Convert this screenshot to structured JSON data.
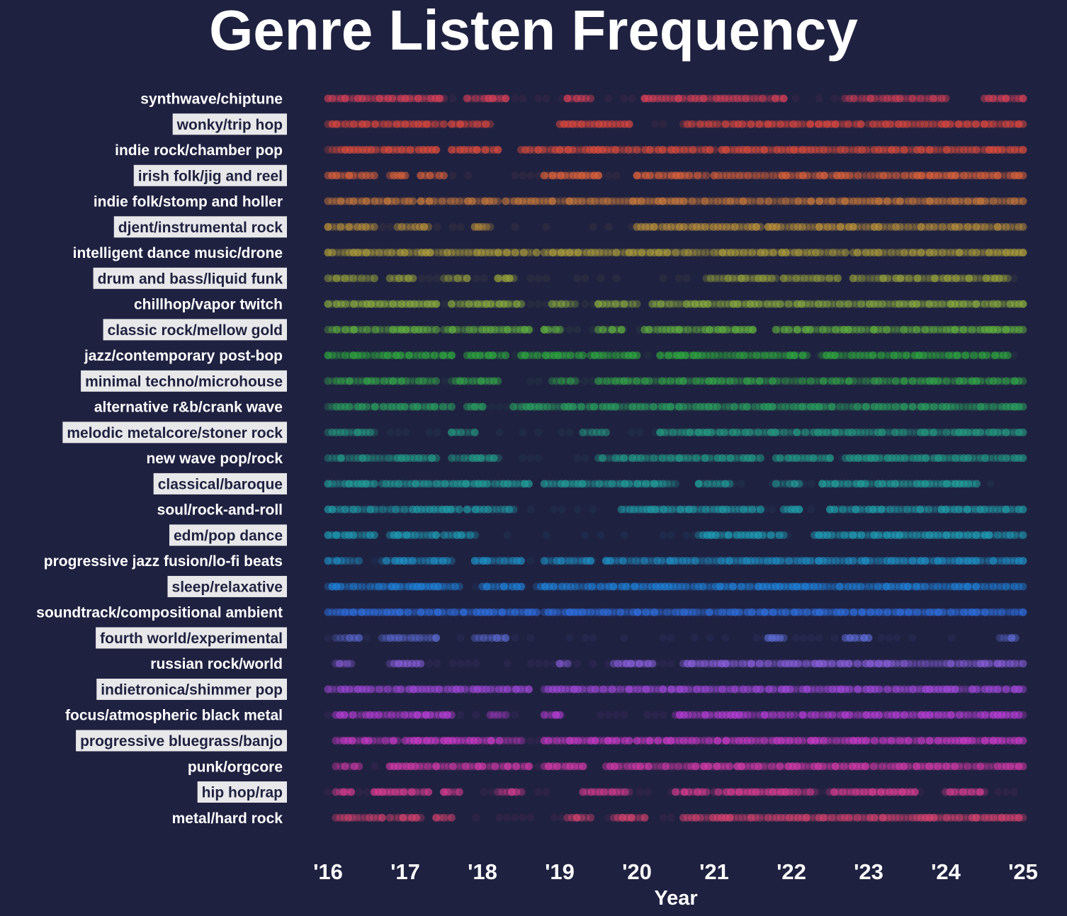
{
  "chart_data": {
    "type": "scatter",
    "title": "Genre Listen Frequency",
    "xlabel": "Year",
    "ylabel": "",
    "x_ticks": [
      "'16",
      "'17",
      "'18",
      "'19",
      "'20",
      "'21",
      "'22",
      "'23",
      "'24",
      "'25"
    ],
    "xlim": [
      2016.0,
      2025.0
    ],
    "grid": false,
    "legend": "none",
    "colors": {
      "background": "#1f2140",
      "label_box": "#e8e8ea",
      "label_box_text": "#1f2140"
    },
    "series": [
      {
        "name": "synthwave/chiptune",
        "color": "#d94058",
        "segments": [
          [
            2016.0,
            2017.5
          ],
          [
            2017.8,
            2018.3
          ],
          [
            2019.1,
            2019.4
          ],
          [
            2020.1,
            2021.9
          ],
          [
            2022.7,
            2024.0
          ],
          [
            2024.5,
            2025.0
          ]
        ]
      },
      {
        "name": "wonky/trip hop",
        "color": "#d9473f",
        "segments": [
          [
            2016.0,
            2017.5
          ],
          [
            2017.6,
            2018.1
          ],
          [
            2019.0,
            2019.9
          ],
          [
            2020.6,
            2022.9
          ],
          [
            2023.0,
            2025.0
          ]
        ]
      },
      {
        "name": "indie rock/chamber pop",
        "color": "#d94b3c",
        "segments": [
          [
            2016.0,
            2017.4
          ],
          [
            2017.6,
            2018.2
          ],
          [
            2018.5,
            2021.0
          ],
          [
            2021.1,
            2025.0
          ]
        ]
      },
      {
        "name": "irish folk/jig and reel",
        "color": "#d9613a",
        "segments": [
          [
            2016.0,
            2016.6
          ],
          [
            2016.8,
            2017.0
          ],
          [
            2017.2,
            2017.5
          ],
          [
            2018.8,
            2019.5
          ],
          [
            2020.0,
            2020.9
          ],
          [
            2021.0,
            2025.0
          ]
        ]
      },
      {
        "name": "indie folk/stomp and holler",
        "color": "#c8793a",
        "segments": [
          [
            2016.0,
            2017.1
          ],
          [
            2017.2,
            2018.2
          ],
          [
            2018.3,
            2025.0
          ]
        ]
      },
      {
        "name": "djent/instrumental rock",
        "color": "#b9903a",
        "segments": [
          [
            2016.0,
            2016.6
          ],
          [
            2016.9,
            2017.3
          ],
          [
            2017.9,
            2018.1
          ],
          [
            2020.0,
            2021.6
          ],
          [
            2021.7,
            2025.0
          ]
        ]
      },
      {
        "name": "intelligent dance music/drone",
        "color": "#a8993a",
        "segments": [
          [
            2016.0,
            2018.7
          ],
          [
            2018.8,
            2022.7
          ],
          [
            2022.8,
            2025.0
          ]
        ]
      },
      {
        "name": "drum and bass/liquid funk",
        "color": "#95a03a",
        "segments": [
          [
            2016.0,
            2016.6
          ],
          [
            2016.8,
            2017.1
          ],
          [
            2017.5,
            2017.8
          ],
          [
            2018.2,
            2018.4
          ],
          [
            2020.9,
            2021.8
          ],
          [
            2021.9,
            2022.6
          ],
          [
            2022.8,
            2024.8
          ]
        ]
      },
      {
        "name": "chillhop/vapor twitch",
        "color": "#86a83e",
        "segments": [
          [
            2016.0,
            2017.4
          ],
          [
            2017.6,
            2018.5
          ],
          [
            2018.9,
            2019.2
          ],
          [
            2019.5,
            2020.0
          ],
          [
            2020.2,
            2025.0
          ]
        ]
      },
      {
        "name": "classic rock/mellow gold",
        "color": "#5fb03e",
        "segments": [
          [
            2016.0,
            2017.4
          ],
          [
            2017.5,
            2018.6
          ],
          [
            2018.8,
            2019.0
          ],
          [
            2019.5,
            2019.8
          ],
          [
            2020.1,
            2021.5
          ],
          [
            2021.8,
            2025.0
          ]
        ]
      },
      {
        "name": "jazz/contemporary post-bop",
        "color": "#2ea63e",
        "segments": [
          [
            2016.0,
            2017.6
          ],
          [
            2017.8,
            2018.3
          ],
          [
            2018.5,
            2019.3
          ],
          [
            2019.4,
            2020.0
          ],
          [
            2020.3,
            2022.2
          ],
          [
            2022.4,
            2024.8
          ]
        ]
      },
      {
        "name": "minimal techno/microhouse",
        "color": "#32a048",
        "segments": [
          [
            2016.0,
            2017.4
          ],
          [
            2017.6,
            2018.2
          ],
          [
            2018.9,
            2019.2
          ],
          [
            2019.5,
            2025.0
          ]
        ]
      },
      {
        "name": "alternative r&b/crank wave",
        "color": "#2a9e5e",
        "segments": [
          [
            2016.0,
            2017.6
          ],
          [
            2017.8,
            2018.0
          ],
          [
            2018.4,
            2025.0
          ]
        ]
      },
      {
        "name": "melodic metalcore/stoner rock",
        "color": "#249880",
        "segments": [
          [
            2016.0,
            2016.6
          ],
          [
            2017.6,
            2017.9
          ],
          [
            2019.3,
            2019.6
          ],
          [
            2020.3,
            2025.0
          ]
        ]
      },
      {
        "name": "new wave pop/rock",
        "color": "#229a86",
        "segments": [
          [
            2016.0,
            2017.4
          ],
          [
            2017.6,
            2018.2
          ],
          [
            2019.5,
            2021.6
          ],
          [
            2021.8,
            2022.5
          ],
          [
            2022.7,
            2025.0
          ]
        ]
      },
      {
        "name": "classical/baroque",
        "color": "#21a09a",
        "segments": [
          [
            2016.0,
            2016.6
          ],
          [
            2016.7,
            2018.6
          ],
          [
            2018.8,
            2020.5
          ],
          [
            2020.8,
            2021.2
          ],
          [
            2021.8,
            2022.1
          ],
          [
            2022.4,
            2024.4
          ]
        ]
      },
      {
        "name": "soul/rock-and-roll",
        "color": "#1f9ba6",
        "segments": [
          [
            2016.0,
            2017.7
          ],
          [
            2017.8,
            2018.4
          ],
          [
            2019.8,
            2021.6
          ],
          [
            2021.9,
            2022.1
          ],
          [
            2022.5,
            2025.0
          ]
        ]
      },
      {
        "name": "edm/pop dance",
        "color": "#1e9eb5",
        "segments": [
          [
            2016.0,
            2016.6
          ],
          [
            2016.8,
            2017.4
          ],
          [
            2017.5,
            2017.9
          ],
          [
            2020.8,
            2021.9
          ],
          [
            2022.3,
            2025.0
          ]
        ]
      },
      {
        "name": "progressive jazz fusion/lo-fi beats",
        "color": "#1e8fc4",
        "segments": [
          [
            2016.0,
            2016.4
          ],
          [
            2016.7,
            2017.6
          ],
          [
            2017.9,
            2018.5
          ],
          [
            2018.8,
            2019.4
          ],
          [
            2019.6,
            2025.0
          ]
        ]
      },
      {
        "name": "sleep/relaxative",
        "color": "#1f7fd6",
        "segments": [
          [
            2016.0,
            2017.7
          ],
          [
            2018.0,
            2018.5
          ],
          [
            2018.7,
            2025.0
          ]
        ]
      },
      {
        "name": "soundtrack/compositional ambient",
        "color": "#2e6fe0",
        "segments": [
          [
            2016.0,
            2017.2
          ],
          [
            2017.2,
            2018.7
          ],
          [
            2018.8,
            2025.0
          ]
        ]
      },
      {
        "name": "fourth world/experimental",
        "color": "#5e6ed8",
        "segments": [
          [
            2016.1,
            2016.4
          ],
          [
            2016.7,
            2017.4
          ],
          [
            2017.9,
            2018.3
          ],
          [
            2021.7,
            2021.9
          ],
          [
            2022.7,
            2023.0
          ],
          [
            2024.7,
            2024.9
          ]
        ]
      },
      {
        "name": "russian rock/world",
        "color": "#8a5fdc",
        "segments": [
          [
            2016.1,
            2016.3
          ],
          [
            2016.8,
            2017.2
          ],
          [
            2019.0,
            2019.1
          ],
          [
            2019.7,
            2020.2
          ],
          [
            2020.6,
            2025.0
          ]
        ]
      },
      {
        "name": "indietronica/shimmer pop",
        "color": "#a048d8",
        "segments": [
          [
            2016.0,
            2018.6
          ],
          [
            2018.8,
            2025.0
          ]
        ]
      },
      {
        "name": "focus/atmospheric black metal",
        "color": "#b63ed4",
        "segments": [
          [
            2016.1,
            2017.6
          ],
          [
            2018.1,
            2018.3
          ],
          [
            2018.8,
            2019.0
          ],
          [
            2020.5,
            2025.0
          ]
        ]
      },
      {
        "name": "progressive bluegrass/banjo",
        "color": "#c83ac6",
        "segments": [
          [
            2016.1,
            2016.9
          ],
          [
            2017.0,
            2018.5
          ],
          [
            2018.8,
            2019.9
          ],
          [
            2020.0,
            2025.0
          ]
        ]
      },
      {
        "name": "punk/orgcore",
        "color": "#d23aa8",
        "segments": [
          [
            2016.1,
            2016.4
          ],
          [
            2016.8,
            2018.6
          ],
          [
            2018.8,
            2019.3
          ],
          [
            2019.6,
            2021.2
          ],
          [
            2021.3,
            2025.0
          ]
        ]
      },
      {
        "name": "hip hop/rap",
        "color": "#d43c8e",
        "segments": [
          [
            2016.1,
            2016.3
          ],
          [
            2016.6,
            2017.3
          ],
          [
            2017.5,
            2017.7
          ],
          [
            2018.2,
            2018.5
          ],
          [
            2019.3,
            2019.9
          ],
          [
            2020.5,
            2020.9
          ],
          [
            2021.0,
            2022.3
          ],
          [
            2022.5,
            2023.6
          ],
          [
            2024.0,
            2024.5
          ]
        ]
      },
      {
        "name": "metal/hard rock",
        "color": "#d4426e",
        "segments": [
          [
            2016.1,
            2016.7
          ],
          [
            2016.8,
            2017.2
          ],
          [
            2017.4,
            2017.6
          ],
          [
            2019.1,
            2019.4
          ],
          [
            2019.7,
            2020.1
          ],
          [
            2020.6,
            2025.0
          ]
        ]
      }
    ]
  }
}
